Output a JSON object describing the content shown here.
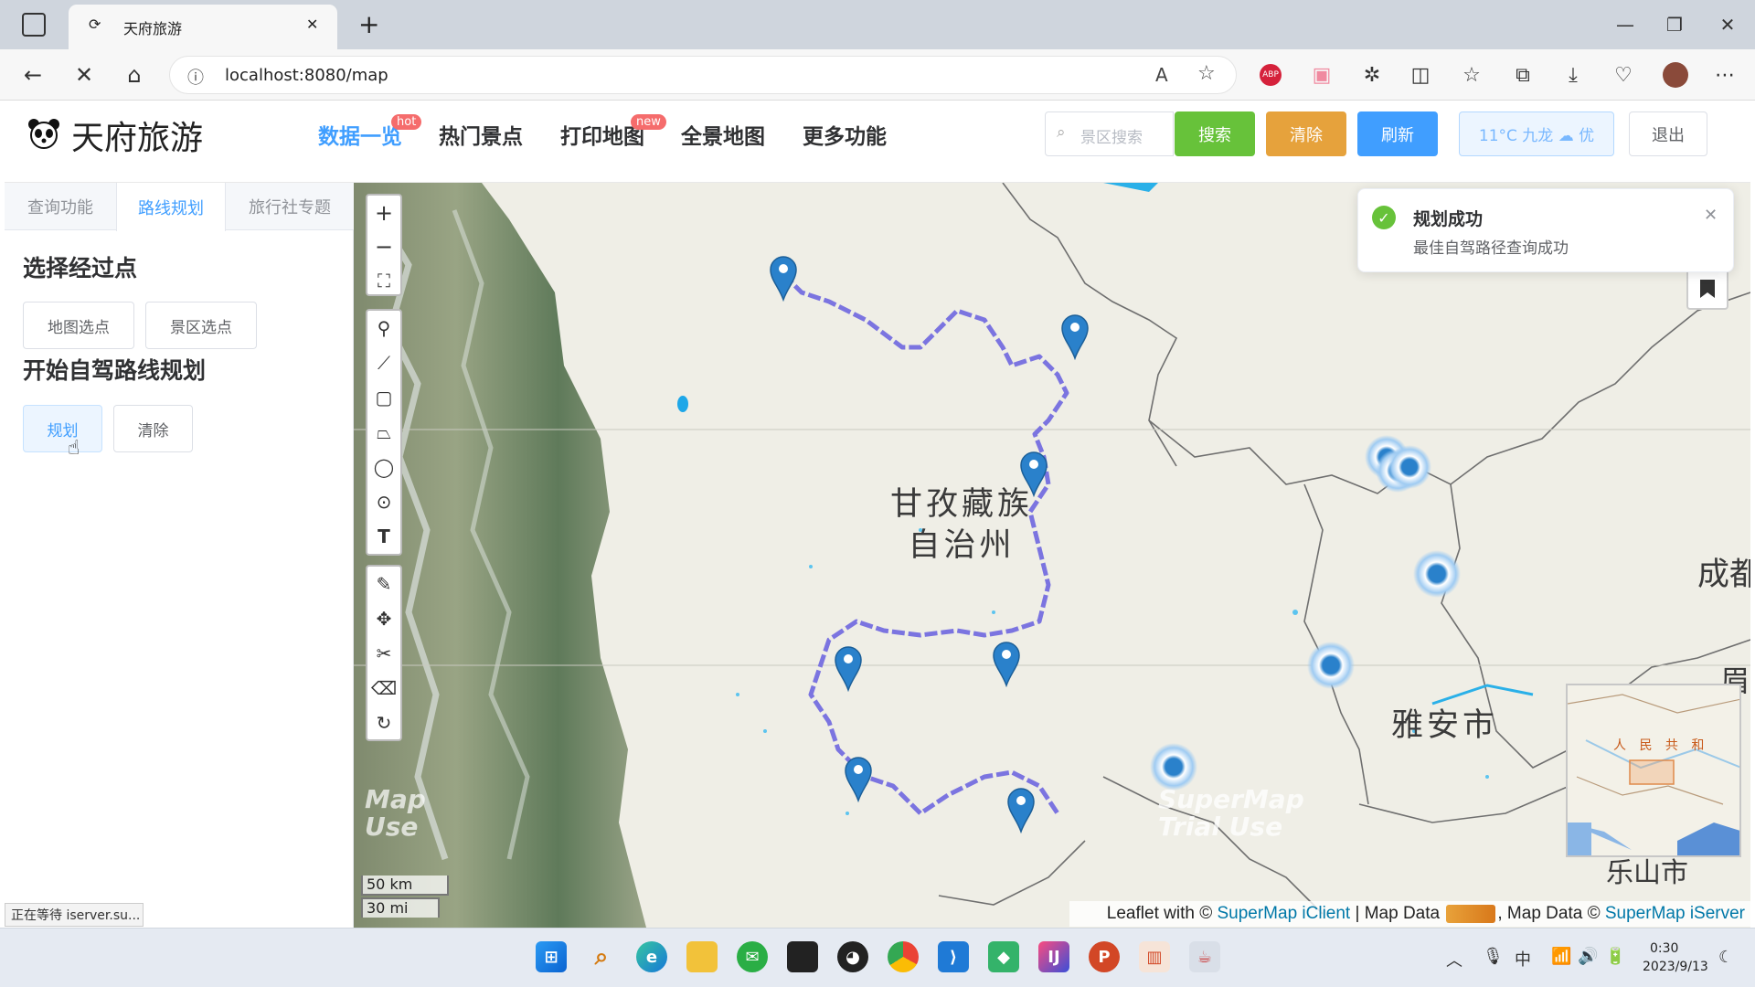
{
  "browser": {
    "tab_title": "天府旅游",
    "new_tab": "+",
    "url": "localhost:8080/map",
    "status_text": "正在等待 iserver.su..."
  },
  "app": {
    "logo_text": "天府旅游",
    "menu": [
      {
        "label": "数据一览",
        "badge": "hot"
      },
      {
        "label": "热门景点"
      },
      {
        "label": "打印地图",
        "badge": "new"
      },
      {
        "label": "全景地图"
      },
      {
        "label": "更多功能"
      }
    ],
    "search_placeholder": "景区搜索",
    "search_btn": "搜索",
    "clear_btn": "清除",
    "refresh_btn": "刷新",
    "weather": "11°C 九龙 ☁ 优",
    "logout_btn": "退出",
    "colors": {
      "primary": "#409eff",
      "success": "#67c23a",
      "warning": "#e6a23c",
      "danger": "#f56c6c"
    }
  },
  "panel": {
    "tabs": [
      "查询功能",
      "路线规划",
      "旅行社专题"
    ],
    "active_tab": "路线规划",
    "section1_title": "选择经过点",
    "btn_map_pick": "地图选点",
    "btn_scenic_pick": "景区选点",
    "section2_title": "开始自驾路线规划",
    "btn_plan": "规划",
    "btn_clear": "清除"
  },
  "map": {
    "zoom_in": "+",
    "zoom_out": "−",
    "labels": {
      "region1_line1": "甘孜藏族",
      "region1_line2": "自治州",
      "region2": "雅安市",
      "region3": "成都",
      "region4": "眉",
      "region5": "乐山市",
      "minimap_label": "人 民 共 和"
    },
    "watermark1": "Map\nUse",
    "watermark2": "SuperMap\nTrial Use",
    "scale_km": "50 km",
    "scale_mi": "30 mi",
    "attribution_prefix": "Leaflet with © ",
    "attribution_link1": "SuperMap iClient",
    "attribution_mid": " | Map Data ",
    "attribution_mid2": ", Map Data © ",
    "attribution_link2": "SuperMap iServer",
    "route_color": "#7b74e0",
    "marker_color": "#2a81cb"
  },
  "notification": {
    "title": "规划成功",
    "message": "最佳自驾路径查询成功"
  },
  "taskbar": {
    "time": "0:30",
    "date": "2023/9/13",
    "ime": "中"
  }
}
